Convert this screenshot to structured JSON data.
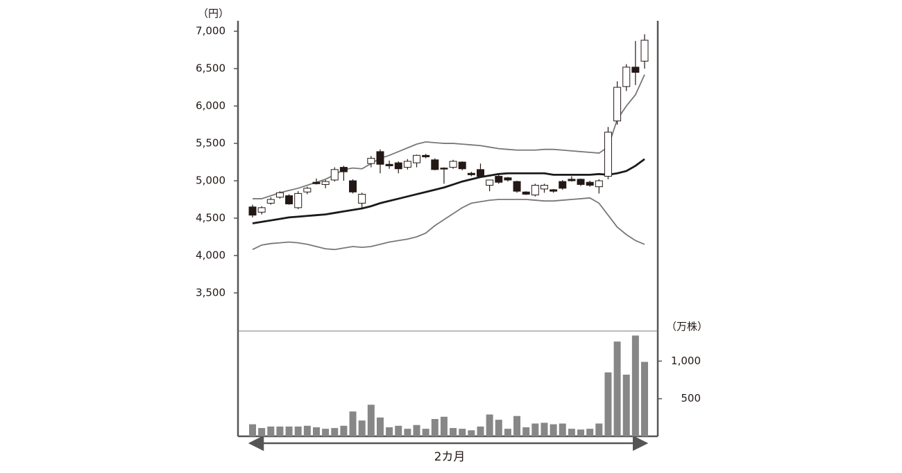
{
  "chart_data": {
    "type": "candlestick",
    "price_unit": "（円）",
    "volume_unit": "（万株）",
    "x_label": "2カ月",
    "ylim": [
      2990,
      7140
    ],
    "yticks": [
      {
        "value": 3500,
        "label": "3,500"
      },
      {
        "value": 4000,
        "label": "4,000"
      },
      {
        "value": 4500,
        "label": "4,500"
      },
      {
        "value": 5000,
        "label": "5,000"
      },
      {
        "value": 5500,
        "label": "5,500"
      },
      {
        "value": 6000,
        "label": "6,000"
      },
      {
        "value": 6500,
        "label": "6,500"
      },
      {
        "value": 7000,
        "label": "7,000"
      }
    ],
    "candles": {
      "up_color": "#ffffff",
      "down_color": "#231815",
      "open": [
        4650,
        4580,
        4700,
        4780,
        4800,
        4640,
        4850,
        4980,
        4950,
        5010,
        5180,
        5000,
        4700,
        5230,
        5390,
        5220,
        5240,
        5180,
        5240,
        5340,
        5280,
        5170,
        5180,
        5250,
        5100,
        5150,
        4940,
        5060,
        5040,
        4990,
        4850,
        4810,
        4890,
        4880,
        4990,
        5020,
        5020,
        4980,
        4920,
        5060,
        5800,
        6260,
        6520,
        6600
      ],
      "high": [
        4680,
        4660,
        4780,
        4860,
        4820,
        4860,
        4920,
        5030,
        5010,
        5180,
        5200,
        5020,
        4840,
        5330,
        5420,
        5270,
        5260,
        5290,
        5350,
        5360,
        5300,
        5180,
        5280,
        5260,
        5120,
        5230,
        5010,
        5080,
        5050,
        5000,
        4860,
        4960,
        4960,
        4890,
        5010,
        5060,
        5030,
        5000,
        5020,
        5720,
        6330,
        6560,
        6870,
        6960
      ],
      "low": [
        4510,
        4550,
        4680,
        4760,
        4680,
        4620,
        4820,
        4950,
        4900,
        4990,
        5000,
        4830,
        4640,
        5180,
        5100,
        5160,
        5100,
        5150,
        5180,
        5300,
        5140,
        4960,
        5160,
        5140,
        5060,
        5050,
        4860,
        4960,
        4990,
        4840,
        4810,
        4790,
        4840,
        4840,
        4880,
        4990,
        4930,
        4920,
        4830,
        5020,
        5750,
        6200,
        6280,
        6500
      ],
      "close": [
        4540,
        4640,
        4750,
        4840,
        4690,
        4830,
        4900,
        4960,
        4990,
        5150,
        5120,
        4850,
        4820,
        5300,
        5220,
        5200,
        5160,
        5260,
        5340,
        5320,
        5150,
        5160,
        5260,
        5160,
        5080,
        5060,
        5010,
        4980,
        5010,
        4860,
        4820,
        4940,
        4940,
        4860,
        4900,
        5000,
        4950,
        4940,
        5000,
        5650,
        6250,
        6520,
        6450,
        6880
      ]
    },
    "lines": [
      {
        "color": "#777777",
        "values": [
          4760,
          4760,
          4800,
          4840,
          4870,
          4900,
          4940,
          4980,
          5020,
          5080,
          5150,
          5170,
          5160,
          5230,
          5300,
          5340,
          5390,
          5440,
          5490,
          5520,
          5510,
          5500,
          5500,
          5490,
          5480,
          5470,
          5450,
          5430,
          5420,
          5410,
          5410,
          5410,
          5420,
          5420,
          5410,
          5400,
          5390,
          5380,
          5370,
          5450,
          5820,
          6000,
          6150,
          6420
        ]
      },
      {
        "color": "#1a1a1a",
        "values": [
          4430,
          4450,
          4470,
          4490,
          4510,
          4520,
          4530,
          4540,
          4550,
          4570,
          4590,
          4610,
          4630,
          4660,
          4700,
          4730,
          4760,
          4790,
          4820,
          4850,
          4880,
          4910,
          4950,
          4990,
          5020,
          5050,
          5070,
          5090,
          5100,
          5100,
          5100,
          5100,
          5100,
          5080,
          5080,
          5080,
          5080,
          5080,
          5090,
          5080,
          5100,
          5130,
          5200,
          5290
        ]
      },
      {
        "color": "#777777",
        "values": [
          4080,
          4140,
          4160,
          4170,
          4180,
          4170,
          4150,
          4120,
          4090,
          4080,
          4100,
          4120,
          4110,
          4120,
          4150,
          4180,
          4200,
          4220,
          4250,
          4300,
          4400,
          4480,
          4560,
          4640,
          4700,
          4720,
          4740,
          4750,
          4750,
          4750,
          4750,
          4740,
          4730,
          4730,
          4740,
          4750,
          4760,
          4770,
          4700,
          4540,
          4380,
          4280,
          4200,
          4150
        ]
      }
    ],
    "volume": {
      "color": "#878787",
      "ylim": [
        0,
        1400
      ],
      "yticks": [
        500,
        {
          "value": 1000,
          "label": "1,000"
        }
      ],
      "values": [
        160,
        110,
        130,
        130,
        130,
        130,
        140,
        120,
        100,
        110,
        140,
        330,
        210,
        420,
        250,
        120,
        140,
        100,
        150,
        100,
        230,
        260,
        110,
        100,
        80,
        130,
        290,
        220,
        100,
        270,
        120,
        170,
        180,
        160,
        170,
        100,
        90,
        100,
        170,
        850,
        1260,
        820,
        1340,
        990
      ]
    }
  }
}
